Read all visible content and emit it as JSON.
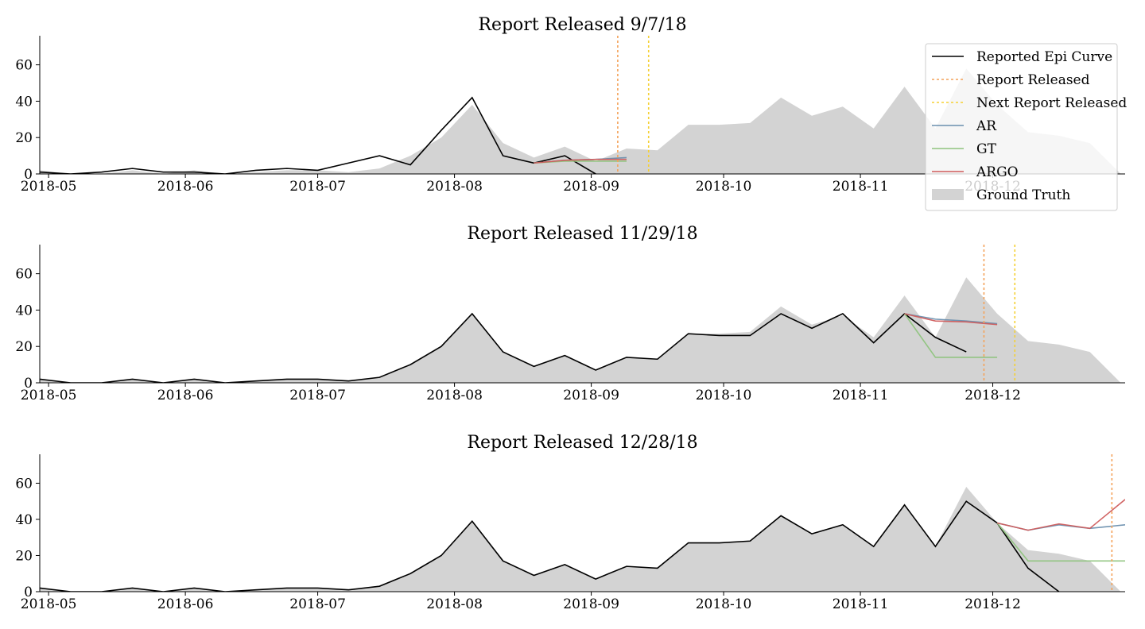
{
  "colors": {
    "epi": "#000000",
    "report": "#f4a259",
    "next_report": "#f5d033",
    "ar": "#6a8fae",
    "gt": "#8fc47e",
    "argo": "#cf5c5c",
    "ground_truth": "#d3d3d3"
  },
  "legend": {
    "items": [
      {
        "label": "Reported Epi Curve",
        "kind": "line",
        "color_key": "epi"
      },
      {
        "label": "Report Released",
        "kind": "dotted",
        "color_key": "report"
      },
      {
        "label": "Next Report Released",
        "kind": "dotted",
        "color_key": "next_report"
      },
      {
        "label": "AR",
        "kind": "line",
        "color_key": "ar"
      },
      {
        "label": "GT",
        "kind": "line",
        "color_key": "gt"
      },
      {
        "label": "ARGO",
        "kind": "line",
        "color_key": "argo"
      },
      {
        "label": "Ground Truth",
        "kind": "patch",
        "color_key": "ground_truth"
      }
    ],
    "placement": "upper-right of first panel"
  },
  "chart_data": [
    {
      "type": "line",
      "title": "Report Released 9/7/18",
      "xlim": [
        "2018-04-29",
        "2018-12-31"
      ],
      "ylim": [
        0,
        76
      ],
      "x_ticks": [
        "2018-05",
        "2018-06",
        "2018-07",
        "2018-08",
        "2018-09",
        "2018-10",
        "2018-11",
        "2018-12"
      ],
      "y_ticks": [
        0,
        20,
        40,
        60
      ],
      "grid": false,
      "ground_truth": {
        "dates": [
          "2018-04-29",
          "2018-05-06",
          "2018-05-13",
          "2018-05-20",
          "2018-05-27",
          "2018-06-03",
          "2018-06-10",
          "2018-06-17",
          "2018-06-24",
          "2018-07-01",
          "2018-07-08",
          "2018-07-15",
          "2018-07-22",
          "2018-07-29",
          "2018-08-05",
          "2018-08-12",
          "2018-08-19",
          "2018-08-26",
          "2018-09-02",
          "2018-09-09",
          "2018-09-16",
          "2018-09-23",
          "2018-09-30",
          "2018-10-07",
          "2018-10-14",
          "2018-10-21",
          "2018-10-28",
          "2018-11-04",
          "2018-11-11",
          "2018-11-18",
          "2018-11-25",
          "2018-12-02",
          "2018-12-09",
          "2018-12-16",
          "2018-12-23",
          "2018-12-30"
        ],
        "values": [
          2,
          0,
          0,
          2,
          0,
          2,
          0,
          1,
          2,
          2,
          1,
          3,
          10,
          20,
          38,
          17,
          9,
          15,
          7,
          14,
          13,
          27,
          27,
          28,
          42,
          32,
          37,
          25,
          48,
          25,
          58,
          38,
          23,
          21,
          17,
          0
        ]
      },
      "reported": {
        "dates": [
          "2018-04-29",
          "2018-05-06",
          "2018-05-13",
          "2018-05-20",
          "2018-05-27",
          "2018-06-03",
          "2018-06-10",
          "2018-06-17",
          "2018-06-24",
          "2018-07-01",
          "2018-07-08",
          "2018-07-15",
          "2018-07-22",
          "2018-07-29",
          "2018-08-05",
          "2018-08-12",
          "2018-08-19",
          "2018-08-26",
          "2018-09-02"
        ],
        "values": [
          1,
          0,
          1,
          3,
          1,
          1,
          0,
          2,
          3,
          2,
          6,
          10,
          5,
          24,
          42,
          10,
          6,
          10,
          0
        ]
      },
      "report_date": "2018-09-07",
      "next_report_date": "2018-09-14",
      "series": [
        {
          "name": "AR",
          "color_key": "ar",
          "dates": [
            "2018-08-19",
            "2018-08-26",
            "2018-09-02",
            "2018-09-09"
          ],
          "values": [
            6,
            7.5,
            8,
            9
          ]
        },
        {
          "name": "GT",
          "color_key": "gt",
          "dates": [
            "2018-08-19",
            "2018-08-26",
            "2018-09-02",
            "2018-09-09"
          ],
          "values": [
            6,
            7,
            7,
            7
          ]
        },
        {
          "name": "ARGO",
          "color_key": "argo",
          "dates": [
            "2018-08-19",
            "2018-08-26",
            "2018-09-02",
            "2018-09-09"
          ],
          "values": [
            6,
            7.5,
            8,
            8
          ]
        }
      ]
    },
    {
      "type": "line",
      "title": "Report Released 11/29/18",
      "xlim": [
        "2018-04-29",
        "2018-12-31"
      ],
      "ylim": [
        0,
        76
      ],
      "x_ticks": [
        "2018-05",
        "2018-06",
        "2018-07",
        "2018-08",
        "2018-09",
        "2018-10",
        "2018-11",
        "2018-12"
      ],
      "y_ticks": [
        0,
        20,
        40,
        60
      ],
      "grid": false,
      "ground_truth": {
        "dates": [
          "2018-04-29",
          "2018-05-06",
          "2018-05-13",
          "2018-05-20",
          "2018-05-27",
          "2018-06-03",
          "2018-06-10",
          "2018-06-17",
          "2018-06-24",
          "2018-07-01",
          "2018-07-08",
          "2018-07-15",
          "2018-07-22",
          "2018-07-29",
          "2018-08-05",
          "2018-08-12",
          "2018-08-19",
          "2018-08-26",
          "2018-09-02",
          "2018-09-09",
          "2018-09-16",
          "2018-09-23",
          "2018-09-30",
          "2018-10-07",
          "2018-10-14",
          "2018-10-21",
          "2018-10-28",
          "2018-11-04",
          "2018-11-11",
          "2018-11-18",
          "2018-11-25",
          "2018-12-02",
          "2018-12-09",
          "2018-12-16",
          "2018-12-23",
          "2018-12-30"
        ],
        "values": [
          2,
          0,
          0,
          2,
          0,
          2,
          0,
          1,
          2,
          2,
          1,
          3,
          10,
          20,
          38,
          17,
          9,
          15,
          7,
          14,
          13,
          27,
          27,
          28,
          42,
          32,
          37,
          25,
          48,
          25,
          58,
          38,
          23,
          21,
          17,
          0
        ]
      },
      "reported": {
        "dates": [
          "2018-04-29",
          "2018-05-06",
          "2018-05-13",
          "2018-05-20",
          "2018-05-27",
          "2018-06-03",
          "2018-06-10",
          "2018-06-17",
          "2018-06-24",
          "2018-07-01",
          "2018-07-08",
          "2018-07-15",
          "2018-07-22",
          "2018-07-29",
          "2018-08-05",
          "2018-08-12",
          "2018-08-19",
          "2018-08-26",
          "2018-09-02",
          "2018-09-09",
          "2018-09-16",
          "2018-09-23",
          "2018-09-30",
          "2018-10-07",
          "2018-10-14",
          "2018-10-21",
          "2018-10-28",
          "2018-11-04",
          "2018-11-11",
          "2018-11-18",
          "2018-11-25"
        ],
        "values": [
          2,
          0,
          0,
          2,
          0,
          2,
          0,
          1,
          2,
          2,
          1,
          3,
          10,
          20,
          38,
          17,
          9,
          15,
          7,
          14,
          13,
          27,
          26,
          26,
          38,
          30,
          38,
          22,
          38,
          25,
          17
        ]
      },
      "report_date": "2018-11-29",
      "next_report_date": "2018-12-06",
      "series": [
        {
          "name": "AR",
          "color_key": "ar",
          "dates": [
            "2018-11-11",
            "2018-11-18",
            "2018-11-25",
            "2018-12-02"
          ],
          "values": [
            38,
            35,
            34,
            32.5
          ]
        },
        {
          "name": "GT",
          "color_key": "gt",
          "dates": [
            "2018-11-11",
            "2018-11-18",
            "2018-11-25",
            "2018-12-02"
          ],
          "values": [
            38,
            14,
            14,
            14
          ]
        },
        {
          "name": "ARGO",
          "color_key": "argo",
          "dates": [
            "2018-11-11",
            "2018-11-18",
            "2018-11-25",
            "2018-12-02"
          ],
          "values": [
            38,
            34,
            33.5,
            32
          ]
        }
      ]
    },
    {
      "type": "line",
      "title": "Report Released 12/28/18",
      "xlim": [
        "2018-04-29",
        "2018-12-31"
      ],
      "ylim": [
        0,
        76
      ],
      "x_ticks": [
        "2018-05",
        "2018-06",
        "2018-07",
        "2018-08",
        "2018-09",
        "2018-10",
        "2018-11",
        "2018-12"
      ],
      "y_ticks": [
        0,
        20,
        40,
        60
      ],
      "grid": false,
      "ground_truth": {
        "dates": [
          "2018-04-29",
          "2018-05-06",
          "2018-05-13",
          "2018-05-20",
          "2018-05-27",
          "2018-06-03",
          "2018-06-10",
          "2018-06-17",
          "2018-06-24",
          "2018-07-01",
          "2018-07-08",
          "2018-07-15",
          "2018-07-22",
          "2018-07-29",
          "2018-08-05",
          "2018-08-12",
          "2018-08-19",
          "2018-08-26",
          "2018-09-02",
          "2018-09-09",
          "2018-09-16",
          "2018-09-23",
          "2018-09-30",
          "2018-10-07",
          "2018-10-14",
          "2018-10-21",
          "2018-10-28",
          "2018-11-04",
          "2018-11-11",
          "2018-11-18",
          "2018-11-25",
          "2018-12-02",
          "2018-12-09",
          "2018-12-16",
          "2018-12-23",
          "2018-12-30"
        ],
        "values": [
          2,
          0,
          0,
          2,
          0,
          2,
          0,
          1,
          2,
          2,
          1,
          3,
          10,
          20,
          39,
          17,
          9,
          15,
          7,
          14,
          13,
          27,
          27,
          28,
          42,
          32,
          37,
          25,
          48,
          25,
          58,
          38,
          23,
          21,
          17,
          0
        ]
      },
      "reported": {
        "dates": [
          "2018-04-29",
          "2018-05-06",
          "2018-05-13",
          "2018-05-20",
          "2018-05-27",
          "2018-06-03",
          "2018-06-10",
          "2018-06-17",
          "2018-06-24",
          "2018-07-01",
          "2018-07-08",
          "2018-07-15",
          "2018-07-22",
          "2018-07-29",
          "2018-08-05",
          "2018-08-12",
          "2018-08-19",
          "2018-08-26",
          "2018-09-02",
          "2018-09-09",
          "2018-09-16",
          "2018-09-23",
          "2018-09-30",
          "2018-10-07",
          "2018-10-14",
          "2018-10-21",
          "2018-10-28",
          "2018-11-04",
          "2018-11-11",
          "2018-11-18",
          "2018-11-25",
          "2018-12-02",
          "2018-12-09",
          "2018-12-16"
        ],
        "values": [
          2,
          0,
          0,
          2,
          0,
          2,
          0,
          1,
          2,
          2,
          1,
          3,
          10,
          20,
          39,
          17,
          9,
          15,
          7,
          14,
          13,
          27,
          27,
          28,
          42,
          32,
          37,
          25,
          48,
          25,
          50,
          38,
          13,
          0
        ]
      },
      "report_date": "2018-12-28",
      "next_report_date": null,
      "series": [
        {
          "name": "AR",
          "color_key": "ar",
          "dates": [
            "2018-12-02",
            "2018-12-09",
            "2018-12-16",
            "2018-12-23",
            "2018-12-31"
          ],
          "values": [
            38,
            34,
            37,
            35,
            37
          ]
        },
        {
          "name": "GT",
          "color_key": "gt",
          "dates": [
            "2018-12-02",
            "2018-12-09",
            "2018-12-16",
            "2018-12-23",
            "2018-12-31"
          ],
          "values": [
            38,
            17,
            17,
            17,
            17
          ]
        },
        {
          "name": "ARGO",
          "color_key": "argo",
          "dates": [
            "2018-12-02",
            "2018-12-09",
            "2018-12-16",
            "2018-12-23",
            "2018-12-31"
          ],
          "values": [
            38,
            34,
            37.5,
            35,
            51
          ]
        }
      ]
    }
  ]
}
